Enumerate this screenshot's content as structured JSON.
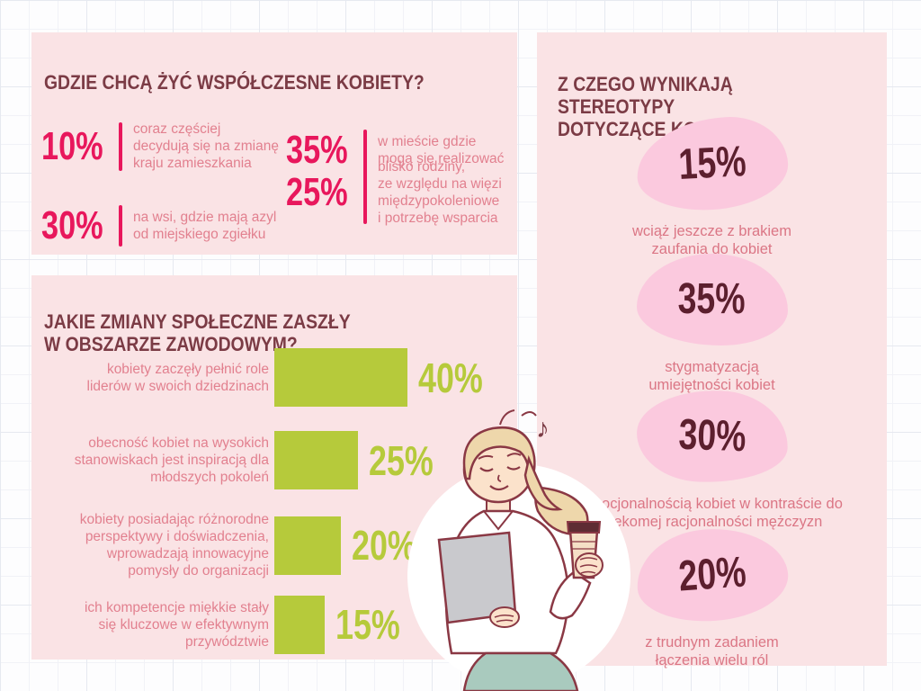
{
  "panel_where": {
    "title": "GDZIE CHCĄ ŻYĆ WSPÓŁCZESNE KOBIETY?",
    "stats": [
      {
        "value": "10%",
        "text": "coraz częściej\ndecydują się na zmianę\nkraju zamieszkania"
      },
      {
        "value": "35%",
        "text": "w mieście gdzie\nmogą się realizować"
      },
      {
        "value": "30%",
        "text": "na wsi, gdzie mają azyl\nod miejskiego zgiełku"
      },
      {
        "value": "25%",
        "text": "blisko rodziny,\nze względu na więzi\nmiędzypokoleniowe\ni potrzebę wsparcia"
      }
    ]
  },
  "panel_social": {
    "title": "JAKIE ZMIANY SPOŁECZNE ZASZŁY\nW OBSZARZE ZAWODOWYM?",
    "bars": [
      {
        "label": "kobiety zaczęły pełnić role\nliderów w swoich dziedzinach",
        "value": 40,
        "value_label": "40%"
      },
      {
        "label": "obecność kobiet na wysokich\nstanowiskach jest inspiracją dla\nmłodszych pokoleń",
        "value": 25,
        "value_label": "25%"
      },
      {
        "label": "kobiety posiadając różnorodne\nperspektywy i doświadczenia,\nwprowadzają innowacyjne\npomysły do organizacji",
        "value": 20,
        "value_label": "20%"
      },
      {
        "label": "ich kompetencje miękkie stały\nsię kluczowe w efektywnym\nprzywództwie",
        "value": 15,
        "value_label": "15%"
      }
    ]
  },
  "panel_stereo": {
    "title": "Z CZEGO WYNIKAJĄ STEREOTYPY\nDOTYCZĄCE KOBIET?",
    "items": [
      {
        "value": "15%",
        "caption": "wciąż jeszcze z brakiem\nzaufania do kobiet"
      },
      {
        "value": "35%",
        "caption": "stygmatyzacją\numiejętności kobiet"
      },
      {
        "value": "30%",
        "caption": "emocjonalnością kobiet w kontraście do\nrzekomej racjonalności mężczyzn"
      },
      {
        "value": "20%",
        "caption": "z trudnym zadaniem\nłączenia wielu ról"
      }
    ]
  },
  "decor": {
    "music_note": "♪"
  },
  "colors": {
    "panel_bg": "#fae3e5",
    "title": "#7b3b45",
    "accent_pink": "#e8175c",
    "rose_text": "#e2808f",
    "green": "#b6ca3b",
    "blob_pink": "#fbc9de",
    "dark_maroon": "#5c1f2e"
  },
  "chart_data": [
    {
      "type": "table",
      "title": "GDZIE CHCĄ ŻYĆ WSPÓŁCZESNE KOBIETY?",
      "categories": [
        "coraz częściej decydują się na zmianę kraju zamieszkania",
        "w mieście gdzie mogą się realizować",
        "na wsi, gdzie mają azyl od miejskiego zgiełku",
        "blisko rodziny, ze względu na więzi międzypokoleniowe i potrzebę wsparcia"
      ],
      "values": [
        10,
        35,
        30,
        25
      ],
      "unit": "%"
    },
    {
      "type": "bar",
      "orientation": "horizontal",
      "title": "JAKIE ZMIANY SPOŁECZNE ZASZŁY W OBSZARZE ZAWODOWYM?",
      "categories": [
        "kobiety zaczęły pełnić role liderów w swoich dziedzinach",
        "obecność kobiet na wysokich stanowiskach jest inspiracją dla młodszych pokoleń",
        "kobiety posiadając różnorodne perspektywy i doświadczenia, wprowadzają innowacyjne pomysły do organizacji",
        "ich kompetencje miękkie stały się kluczowe w efektywnym przywództwie"
      ],
      "values": [
        40,
        25,
        20,
        15
      ],
      "unit": "%",
      "bar_color": "#b6ca3b",
      "grid": false,
      "legend": false
    },
    {
      "type": "table",
      "title": "Z CZEGO WYNIKAJĄ STEREOTYPY DOTYCZĄCE KOBIET?",
      "categories": [
        "wciąż jeszcze z brakiem zaufania do kobiet",
        "stygmatyzacją umiejętności kobiet",
        "emocjonalnością kobiet w kontraście do rzekomej racjonalności mężczyzn",
        "z trudnym zadaniem łączenia wielu ról"
      ],
      "values": [
        15,
        35,
        30,
        20
      ],
      "unit": "%"
    }
  ]
}
